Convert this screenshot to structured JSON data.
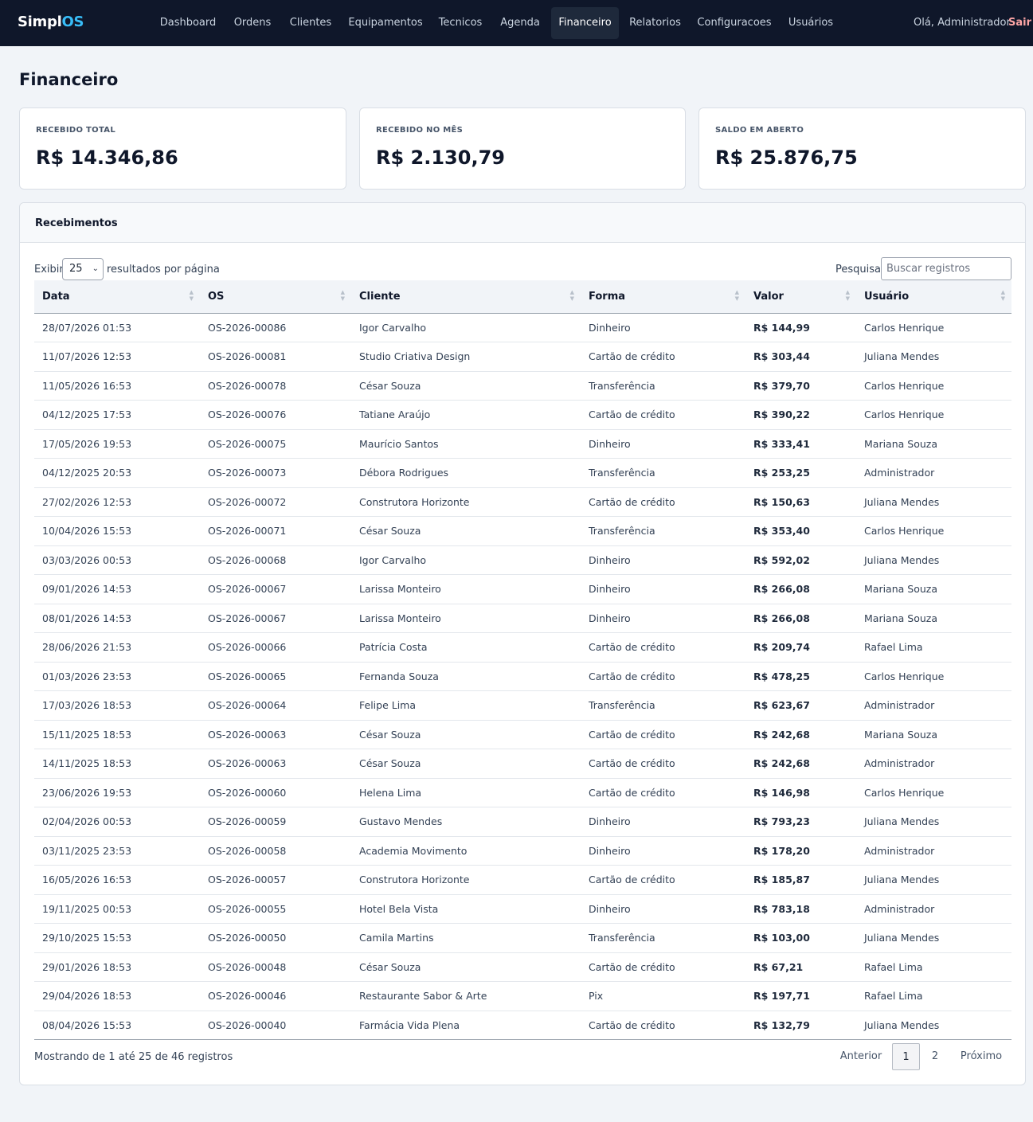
{
  "nav": {
    "brand_prefix": "Simpl",
    "brand_suffix": "OS",
    "items": [
      {
        "label": "Dashboard"
      },
      {
        "label": "Ordens"
      },
      {
        "label": "Clientes"
      },
      {
        "label": "Equipamentos"
      },
      {
        "label": "Tecnicos"
      },
      {
        "label": "Agenda"
      },
      {
        "label": "Financeiro",
        "active": true
      },
      {
        "label": "Relatorios"
      },
      {
        "label": "Configuracoes"
      },
      {
        "label": "Usuários"
      }
    ],
    "greeting": "Olá, Administrador",
    "logout": "Sair"
  },
  "page": {
    "title": "Financeiro"
  },
  "stats": [
    {
      "label": "RECEBIDO TOTAL",
      "value": "R$ 14.346,86"
    },
    {
      "label": "RECEBIDO NO MÊS",
      "value": "R$ 2.130,79"
    },
    {
      "label": "SALDO EM ABERTO",
      "value": "R$ 25.876,75"
    }
  ],
  "panel": {
    "title": "Recebimentos",
    "length_prefix": "Exibir",
    "length_value": "25",
    "length_suffix": "resultados por página",
    "search_label": "Pesquisar",
    "search_placeholder": "Buscar registros",
    "columns": [
      "Data",
      "OS",
      "Cliente",
      "Forma",
      "Valor",
      "Usuário"
    ],
    "rows": [
      [
        "28/07/2026 01:53",
        "OS-2026-00086",
        "Igor Carvalho",
        "Dinheiro",
        "R$ 144,99",
        "Carlos Henrique"
      ],
      [
        "11/07/2026 12:53",
        "OS-2026-00081",
        "Studio Criativa Design",
        "Cartão de crédito",
        "R$ 303,44",
        "Juliana Mendes"
      ],
      [
        "11/05/2026 16:53",
        "OS-2026-00078",
        "César Souza",
        "Transferência",
        "R$ 379,70",
        "Carlos Henrique"
      ],
      [
        "04/12/2025 17:53",
        "OS-2026-00076",
        "Tatiane Araújo",
        "Cartão de crédito",
        "R$ 390,22",
        "Carlos Henrique"
      ],
      [
        "17/05/2026 19:53",
        "OS-2026-00075",
        "Maurício Santos",
        "Dinheiro",
        "R$ 333,41",
        "Mariana Souza"
      ],
      [
        "04/12/2025 20:53",
        "OS-2026-00073",
        "Débora Rodrigues",
        "Transferência",
        "R$ 253,25",
        "Administrador"
      ],
      [
        "27/02/2026 12:53",
        "OS-2026-00072",
        "Construtora Horizonte",
        "Cartão de crédito",
        "R$ 150,63",
        "Juliana Mendes"
      ],
      [
        "10/04/2026 15:53",
        "OS-2026-00071",
        "César Souza",
        "Transferência",
        "R$ 353,40",
        "Carlos Henrique"
      ],
      [
        "03/03/2026 00:53",
        "OS-2026-00068",
        "Igor Carvalho",
        "Dinheiro",
        "R$ 592,02",
        "Juliana Mendes"
      ],
      [
        "09/01/2026 14:53",
        "OS-2026-00067",
        "Larissa Monteiro",
        "Dinheiro",
        "R$ 266,08",
        "Mariana Souza"
      ],
      [
        "08/01/2026 14:53",
        "OS-2026-00067",
        "Larissa Monteiro",
        "Dinheiro",
        "R$ 266,08",
        "Mariana Souza"
      ],
      [
        "28/06/2026 21:53",
        "OS-2026-00066",
        "Patrícia Costa",
        "Cartão de crédito",
        "R$ 209,74",
        "Rafael Lima"
      ],
      [
        "01/03/2026 23:53",
        "OS-2026-00065",
        "Fernanda Souza",
        "Cartão de crédito",
        "R$ 478,25",
        "Carlos Henrique"
      ],
      [
        "17/03/2026 18:53",
        "OS-2026-00064",
        "Felipe Lima",
        "Transferência",
        "R$ 623,67",
        "Administrador"
      ],
      [
        "15/11/2025 18:53",
        "OS-2026-00063",
        "César Souza",
        "Cartão de crédito",
        "R$ 242,68",
        "Mariana Souza"
      ],
      [
        "14/11/2025 18:53",
        "OS-2026-00063",
        "César Souza",
        "Cartão de crédito",
        "R$ 242,68",
        "Administrador"
      ],
      [
        "23/06/2026 19:53",
        "OS-2026-00060",
        "Helena Lima",
        "Cartão de crédito",
        "R$ 146,98",
        "Carlos Henrique"
      ],
      [
        "02/04/2026 00:53",
        "OS-2026-00059",
        "Gustavo Mendes",
        "Dinheiro",
        "R$ 793,23",
        "Juliana Mendes"
      ],
      [
        "03/11/2025 23:53",
        "OS-2026-00058",
        "Academia Movimento",
        "Dinheiro",
        "R$ 178,20",
        "Administrador"
      ],
      [
        "16/05/2026 16:53",
        "OS-2026-00057",
        "Construtora Horizonte",
        "Cartão de crédito",
        "R$ 185,87",
        "Juliana Mendes"
      ],
      [
        "19/11/2025 00:53",
        "OS-2026-00055",
        "Hotel Bela Vista",
        "Dinheiro",
        "R$ 783,18",
        "Administrador"
      ],
      [
        "29/10/2025 15:53",
        "OS-2026-00050",
        "Camila Martins",
        "Transferência",
        "R$ 103,00",
        "Juliana Mendes"
      ],
      [
        "29/01/2026 18:53",
        "OS-2026-00048",
        "César Souza",
        "Cartão de crédito",
        "R$ 67,21",
        "Rafael Lima"
      ],
      [
        "29/04/2026 18:53",
        "OS-2026-00046",
        "Restaurante Sabor & Arte",
        "Pix",
        "R$ 197,71",
        "Rafael Lima"
      ],
      [
        "08/04/2026 15:53",
        "OS-2026-00040",
        "Farmácia Vida Plena",
        "Cartão de crédito",
        "R$ 132,79",
        "Juliana Mendes"
      ]
    ],
    "info": "Mostrando de 1 até 25 de 46 registros",
    "pagination": {
      "previous": "Anterior",
      "pages": [
        "1",
        "2"
      ],
      "current": "1",
      "next": "Próximo"
    }
  }
}
